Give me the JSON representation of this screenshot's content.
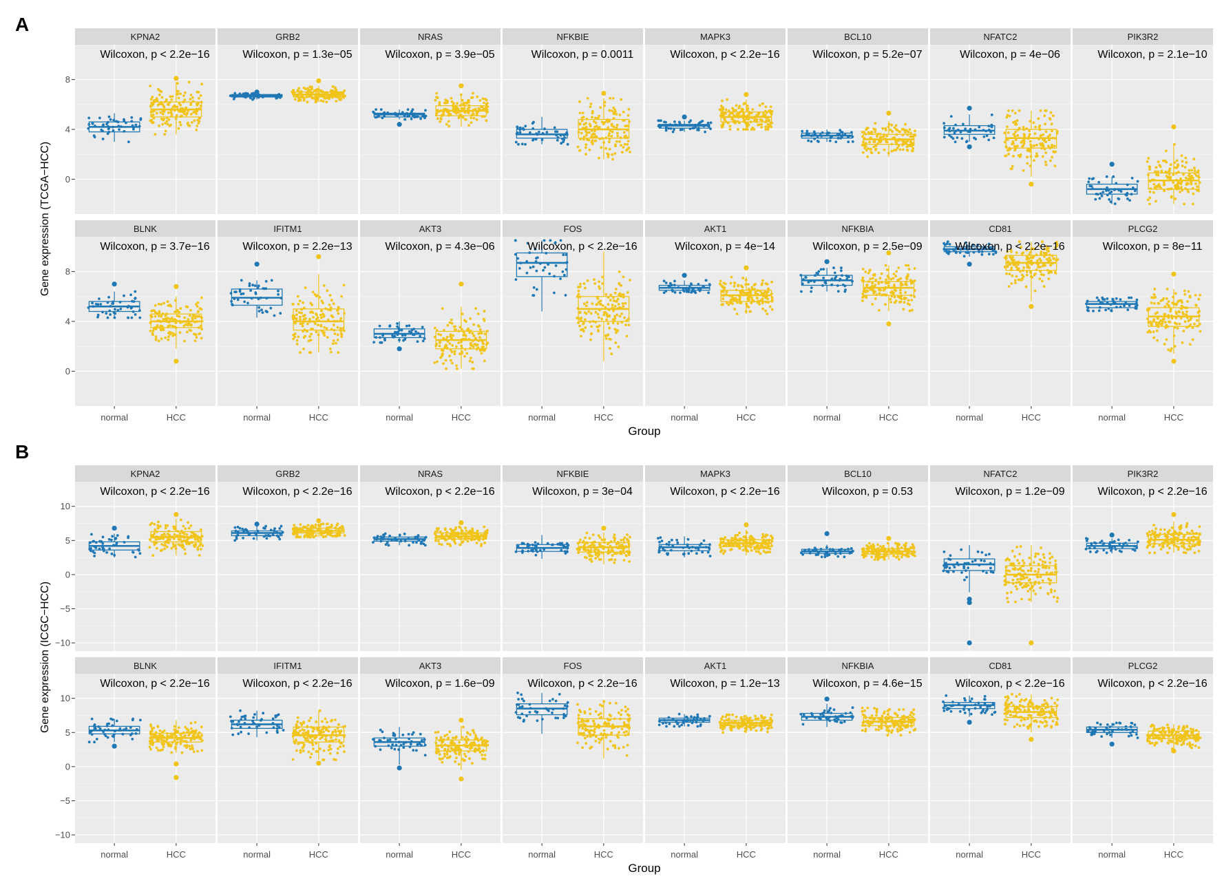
{
  "colors": {
    "normal": "#1F77B4",
    "HCC": "#F0C419",
    "panel_bg": "#EBEBEB",
    "strip_bg": "#D9D9D9",
    "grid": "#FFFFFF"
  },
  "chart_data": [
    {
      "panel_label": "A",
      "type": "box-jitter",
      "ylabel": "Gene expression (TCGA−HCC)",
      "xlabel": "Group",
      "groups": [
        "normal",
        "HCC"
      ],
      "yticks": [
        0,
        4,
        8
      ],
      "ylim": [
        -2.8,
        10.8
      ],
      "genes": [
        {
          "name": "KPNA2",
          "p": "Wilcoxon, p < 2.2e−16",
          "normal": {
            "min": 3.0,
            "q1": 3.8,
            "med": 4.2,
            "q3": 4.6,
            "max": 5.3,
            "out": []
          },
          "HCC": {
            "min": 3.6,
            "q1": 5.0,
            "med": 5.6,
            "q3": 6.2,
            "max": 7.8,
            "out": [
              8.1
            ]
          }
        },
        {
          "name": "GRB2",
          "p": "Wilcoxon, p = 1.3e−05",
          "normal": {
            "min": 6.4,
            "q1": 6.6,
            "med": 6.7,
            "q3": 6.8,
            "max": 6.9,
            "out": [
              7.0
            ]
          },
          "HCC": {
            "min": 6.2,
            "q1": 6.6,
            "med": 6.8,
            "q3": 7.0,
            "max": 7.5,
            "out": [
              7.9
            ]
          }
        },
        {
          "name": "NRAS",
          "p": "Wilcoxon, p = 3.9e−05",
          "normal": {
            "min": 4.8,
            "q1": 5.0,
            "med": 5.2,
            "q3": 5.3,
            "max": 5.6,
            "out": [
              4.4
            ]
          },
          "HCC": {
            "min": 4.2,
            "q1": 5.1,
            "med": 5.5,
            "q3": 5.9,
            "max": 6.9,
            "out": [
              7.5
            ]
          }
        },
        {
          "name": "NFKBIE",
          "p": "Wilcoxon, p = 0.0011",
          "normal": {
            "min": 2.8,
            "q1": 3.3,
            "med": 3.6,
            "q3": 4.0,
            "max": 5.0,
            "out": []
          },
          "HCC": {
            "min": 1.6,
            "q1": 3.3,
            "med": 4.0,
            "q3": 4.8,
            "max": 6.5,
            "out": [
              6.9
            ]
          }
        },
        {
          "name": "MAPK3",
          "p": "Wilcoxon, p < 2.2e−16",
          "normal": {
            "min": 3.8,
            "q1": 4.1,
            "med": 4.3,
            "q3": 4.4,
            "max": 4.7,
            "out": [
              5.0
            ]
          },
          "HCC": {
            "min": 4.0,
            "q1": 4.6,
            "med": 5.0,
            "q3": 5.4,
            "max": 6.4,
            "out": [
              6.8
            ]
          }
        },
        {
          "name": "BCL10",
          "p": "Wilcoxon, p = 5.2e−07",
          "normal": {
            "min": 3.0,
            "q1": 3.3,
            "med": 3.5,
            "q3": 3.7,
            "max": 4.0,
            "out": []
          },
          "HCC": {
            "min": 1.8,
            "q1": 2.8,
            "med": 3.2,
            "q3": 3.6,
            "max": 4.7,
            "out": [
              5.3
            ]
          }
        },
        {
          "name": "NFATC2",
          "p": "Wilcoxon, p = 4e−06",
          "normal": {
            "min": 3.0,
            "q1": 3.6,
            "med": 3.9,
            "q3": 4.3,
            "max": 5.2,
            "out": [
              5.7,
              2.6
            ]
          },
          "HCC": {
            "min": 0.2,
            "q1": 2.5,
            "med": 3.3,
            "q3": 4.0,
            "max": 5.5,
            "out": [
              -0.4
            ]
          }
        },
        {
          "name": "PIK3R2",
          "p": "Wilcoxon, p = 2.1e−10",
          "normal": {
            "min": -2.0,
            "q1": -1.2,
            "med": -0.8,
            "q3": -0.4,
            "max": 0.2,
            "out": [
              1.2
            ]
          },
          "HCC": {
            "min": -2.0,
            "q1": -0.8,
            "med": -0.1,
            "q3": 0.5,
            "max": 2.8,
            "out": [
              4.2
            ]
          }
        },
        {
          "name": "BLNK",
          "p": "Wilcoxon, p = 3.7e−16",
          "normal": {
            "min": 4.3,
            "q1": 4.8,
            "med": 5.2,
            "q3": 5.6,
            "max": 6.4,
            "out": [
              7.0
            ]
          },
          "HCC": {
            "min": 1.8,
            "q1": 3.5,
            "med": 4.0,
            "q3": 4.6,
            "max": 6.0,
            "out": [
              6.8,
              0.8
            ]
          }
        },
        {
          "name": "IFITM1",
          "p": "Wilcoxon, p = 2.2e−13",
          "normal": {
            "min": 4.3,
            "q1": 5.3,
            "med": 5.9,
            "q3": 6.6,
            "max": 7.3,
            "out": [
              8.6
            ]
          },
          "HCC": {
            "min": 1.5,
            "q1": 3.3,
            "med": 4.0,
            "q3": 5.0,
            "max": 7.8,
            "out": [
              9.2
            ]
          }
        },
        {
          "name": "AKT3",
          "p": "Wilcoxon, p = 4.3e−06",
          "normal": {
            "min": 2.3,
            "q1": 2.7,
            "med": 3.0,
            "q3": 3.4,
            "max": 4.0,
            "out": [
              1.8
            ]
          },
          "HCC": {
            "min": 0.2,
            "q1": 1.8,
            "med": 2.5,
            "q3": 3.2,
            "max": 5.2,
            "out": [
              7.0
            ]
          }
        },
        {
          "name": "FOS",
          "p": "Wilcoxon, p < 2.2e−16",
          "normal": {
            "min": 4.8,
            "q1": 7.6,
            "med": 8.7,
            "q3": 9.5,
            "max": 10.5,
            "out": []
          },
          "HCC": {
            "min": 0.8,
            "q1": 4.0,
            "med": 5.0,
            "q3": 6.0,
            "max": 9.6,
            "out": []
          }
        },
        {
          "name": "AKT1",
          "p": "Wilcoxon, p = 4e−14",
          "normal": {
            "min": 6.3,
            "q1": 6.5,
            "med": 6.7,
            "q3": 6.9,
            "max": 7.3,
            "out": [
              7.7
            ]
          },
          "HCC": {
            "min": 4.6,
            "q1": 5.6,
            "med": 6.1,
            "q3": 6.5,
            "max": 7.6,
            "out": [
              8.3
            ]
          }
        },
        {
          "name": "NFKBIA",
          "p": "Wilcoxon, p = 2.5e−09",
          "normal": {
            "min": 6.4,
            "q1": 6.9,
            "med": 7.3,
            "q3": 7.7,
            "max": 8.3,
            "out": [
              8.8
            ]
          },
          "HCC": {
            "min": 4.8,
            "q1": 6.1,
            "med": 6.7,
            "q3": 7.2,
            "max": 8.5,
            "out": [
              9.5,
              3.8
            ]
          }
        },
        {
          "name": "CD81",
          "p": "Wilcoxon, p < 2.2e−16",
          "normal": {
            "min": 9.2,
            "q1": 9.6,
            "med": 9.8,
            "q3": 10.0,
            "max": 10.4,
            "out": [
              8.6
            ]
          },
          "HCC": {
            "min": 5.6,
            "q1": 8.1,
            "med": 8.7,
            "q3": 9.3,
            "max": 10.4,
            "out": [
              5.2
            ]
          }
        },
        {
          "name": "PLCG2",
          "p": "Wilcoxon, p = 8e−11",
          "normal": {
            "min": 4.8,
            "q1": 5.1,
            "med": 5.4,
            "q3": 5.6,
            "max": 5.9,
            "out": []
          },
          "HCC": {
            "min": 1.4,
            "q1": 3.6,
            "med": 4.4,
            "q3": 5.1,
            "max": 6.6,
            "out": [
              7.8,
              0.8
            ]
          }
        }
      ]
    },
    {
      "panel_label": "B",
      "type": "box-jitter",
      "ylabel": "Gene expression (ICGC−HCC)",
      "xlabel": "Group",
      "groups": [
        "normal",
        "HCC"
      ],
      "yticks": [
        -10,
        -5,
        0,
        5,
        10
      ],
      "ylim": [
        -11.2,
        13.6
      ],
      "genes": [
        {
          "name": "KPNA2",
          "p": "Wilcoxon, p < 2.2e−16",
          "normal": {
            "min": 2.5,
            "q1": 3.6,
            "med": 4.2,
            "q3": 4.8,
            "max": 6.0,
            "out": [
              6.8
            ]
          },
          "HCC": {
            "min": 2.8,
            "q1": 4.8,
            "med": 5.5,
            "q3": 6.3,
            "max": 8.2,
            "out": [
              8.8
            ]
          }
        },
        {
          "name": "GRB2",
          "p": "Wilcoxon, p < 2.2e−16",
          "normal": {
            "min": 5.0,
            "q1": 5.7,
            "med": 6.1,
            "q3": 6.4,
            "max": 7.1,
            "out": [
              7.4
            ]
          },
          "HCC": {
            "min": 5.5,
            "q1": 6.1,
            "med": 6.4,
            "q3": 6.8,
            "max": 7.5,
            "out": [
              7.9
            ]
          }
        },
        {
          "name": "NRAS",
          "p": "Wilcoxon, p < 2.2e−16",
          "normal": {
            "min": 4.3,
            "q1": 4.9,
            "med": 5.2,
            "q3": 5.5,
            "max": 6.0,
            "out": []
          },
          "HCC": {
            "min": 4.2,
            "q1": 5.2,
            "med": 5.6,
            "q3": 6.1,
            "max": 7.0,
            "out": [
              7.6
            ]
          }
        },
        {
          "name": "NFKBIE",
          "p": "Wilcoxon, p = 3e−04",
          "normal": {
            "min": 2.3,
            "q1": 3.4,
            "med": 3.9,
            "q3": 4.4,
            "max": 5.8,
            "out": []
          },
          "HCC": {
            "min": 1.5,
            "q1": 3.3,
            "med": 4.0,
            "q3": 4.7,
            "max": 6.2,
            "out": [
              6.8
            ]
          }
        },
        {
          "name": "MAPK3",
          "p": "Wilcoxon, p < 2.2e−16",
          "normal": {
            "min": 2.5,
            "q1": 3.5,
            "med": 4.0,
            "q3": 4.4,
            "max": 5.6,
            "out": []
          },
          "HCC": {
            "min": 2.8,
            "q1": 4.1,
            "med": 4.6,
            "q3": 5.1,
            "max": 6.6,
            "out": [
              7.3
            ]
          }
        },
        {
          "name": "BCL10",
          "p": "Wilcoxon, p = 0.53",
          "normal": {
            "min": 2.6,
            "q1": 3.1,
            "med": 3.4,
            "q3": 3.7,
            "max": 4.4,
            "out": [
              6.0
            ]
          },
          "HCC": {
            "min": 2.2,
            "q1": 3.0,
            "med": 3.4,
            "q3": 3.8,
            "max": 4.6,
            "out": [
              5.3
            ]
          }
        },
        {
          "name": "NFATC2",
          "p": "Wilcoxon, p = 1.2e−09",
          "normal": {
            "min": -2.6,
            "q1": 0.6,
            "med": 1.5,
            "q3": 2.3,
            "max": 4.3,
            "out": [
              -3.6,
              -4.1,
              -10.0
            ]
          },
          "HCC": {
            "min": -4.0,
            "q1": -1.2,
            "med": 0.0,
            "q3": 1.3,
            "max": 4.3,
            "out": [
              -10.0
            ]
          }
        },
        {
          "name": "PIK3R2",
          "p": "Wilcoxon, p < 2.2e−16",
          "normal": {
            "min": 3.1,
            "q1": 3.8,
            "med": 4.2,
            "q3": 4.6,
            "max": 5.3,
            "out": [
              5.8
            ]
          },
          "HCC": {
            "min": 3.2,
            "q1": 4.5,
            "med": 5.1,
            "q3": 5.9,
            "max": 7.8,
            "out": [
              8.8
            ]
          }
        },
        {
          "name": "BLNK",
          "p": "Wilcoxon, p < 2.2e−16",
          "normal": {
            "min": 3.6,
            "q1": 4.8,
            "med": 5.3,
            "q3": 5.9,
            "max": 7.0,
            "out": [
              3.0
            ]
          },
          "HCC": {
            "min": 2.0,
            "q1": 3.6,
            "med": 4.2,
            "q3": 4.9,
            "max": 6.8,
            "out": [
              0.4,
              -1.6
            ]
          }
        },
        {
          "name": "IFITM1",
          "p": "Wilcoxon, p < 2.2e−16",
          "normal": {
            "min": 4.3,
            "q1": 5.6,
            "med": 6.2,
            "q3": 6.8,
            "max": 8.2,
            "out": []
          },
          "HCC": {
            "min": 1.0,
            "q1": 3.6,
            "med": 4.6,
            "q3": 5.8,
            "max": 8.2,
            "out": [
              0.5
            ]
          }
        },
        {
          "name": "AKT3",
          "p": "Wilcoxon, p = 1.6e−09",
          "normal": {
            "min": 0.3,
            "q1": 3.0,
            "med": 3.6,
            "q3": 4.2,
            "max": 5.8,
            "out": [
              -0.2
            ]
          },
          "HCC": {
            "min": -0.5,
            "q1": 2.3,
            "med": 3.1,
            "q3": 3.9,
            "max": 6.0,
            "out": [
              6.8,
              -1.8
            ]
          }
        },
        {
          "name": "FOS",
          "p": "Wilcoxon, p < 2.2e−16",
          "normal": {
            "min": 4.8,
            "q1": 7.6,
            "med": 8.5,
            "q3": 9.2,
            "max": 10.8,
            "out": []
          },
          "HCC": {
            "min": 1.2,
            "q1": 4.6,
            "med": 5.9,
            "q3": 7.0,
            "max": 9.8,
            "out": []
          }
        },
        {
          "name": "AKT1",
          "p": "Wilcoxon, p = 1.2e−13",
          "normal": {
            "min": 5.9,
            "q1": 6.5,
            "med": 6.8,
            "q3": 7.1,
            "max": 7.7,
            "out": []
          },
          "HCC": {
            "min": 4.9,
            "q1": 6.0,
            "med": 6.4,
            "q3": 6.8,
            "max": 7.6,
            "out": []
          }
        },
        {
          "name": "NFKBIA",
          "p": "Wilcoxon, p = 4.6e−15",
          "normal": {
            "min": 5.8,
            "q1": 6.8,
            "med": 7.3,
            "q3": 7.8,
            "max": 9.2,
            "out": [
              9.9
            ]
          },
          "HCC": {
            "min": 4.6,
            "q1": 6.0,
            "med": 6.6,
            "q3": 7.2,
            "max": 8.6,
            "out": []
          }
        },
        {
          "name": "CD81",
          "p": "Wilcoxon, p < 2.2e−16",
          "normal": {
            "min": 7.3,
            "q1": 8.5,
            "med": 9.0,
            "q3": 9.4,
            "max": 10.4,
            "out": [
              6.5
            ]
          },
          "HCC": {
            "min": 5.0,
            "q1": 7.2,
            "med": 8.0,
            "q3": 8.8,
            "max": 10.6,
            "out": [
              4.0
            ]
          }
        },
        {
          "name": "PLCG2",
          "p": "Wilcoxon, p < 2.2e−16",
          "normal": {
            "min": 4.2,
            "q1": 5.0,
            "med": 5.4,
            "q3": 5.8,
            "max": 6.4,
            "out": [
              3.3
            ]
          },
          "HCC": {
            "min": 2.6,
            "q1": 4.1,
            "med": 4.6,
            "q3": 5.2,
            "max": 6.2,
            "out": [
              2.3
            ]
          }
        }
      ]
    }
  ]
}
